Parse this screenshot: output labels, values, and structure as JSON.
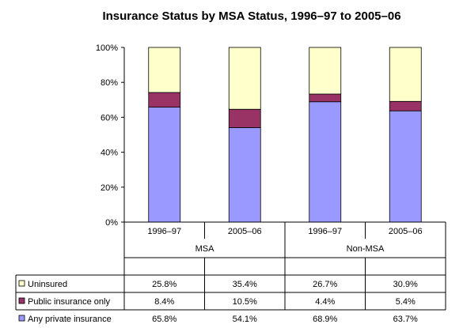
{
  "chart_data": {
    "type": "bar",
    "stacked": true,
    "title": "Insurance Status by MSA Status, 1996–97 to 2005–06",
    "groups": [
      {
        "label": "MSA",
        "categories": [
          "1996–97",
          "2005–06"
        ]
      },
      {
        "label": "Non-MSA",
        "categories": [
          "1996–97",
          "2005–06"
        ]
      }
    ],
    "categories": [
      "1996–97",
      "2005–06",
      "1996–97",
      "2005–06"
    ],
    "series": [
      {
        "name": "Any private insurance",
        "color": "#9999FF",
        "values": [
          65.8,
          54.1,
          68.9,
          63.7
        ],
        "labels": [
          "65.8%",
          "54.1%",
          "68.9%",
          "63.7%"
        ]
      },
      {
        "name": "Public insurance only",
        "color": "#993366",
        "values": [
          8.4,
          10.5,
          4.4,
          5.4
        ],
        "labels": [
          "8.4%",
          "10.5%",
          "4.4%",
          "5.4%"
        ]
      },
      {
        "name": "Uninsured",
        "color": "#FFFFCC",
        "values": [
          25.8,
          35.4,
          26.7,
          30.9
        ],
        "labels": [
          "25.8%",
          "35.4%",
          "26.7%",
          "30.9%"
        ]
      }
    ],
    "table_row_order": [
      "Uninsured",
      "Public insurance only",
      "Any private insurance"
    ],
    "ylim": [
      0,
      100
    ],
    "yticks": [
      "0%",
      "20%",
      "40%",
      "60%",
      "80%",
      "100%"
    ],
    "grid": false,
    "legend": "data table below chart"
  }
}
